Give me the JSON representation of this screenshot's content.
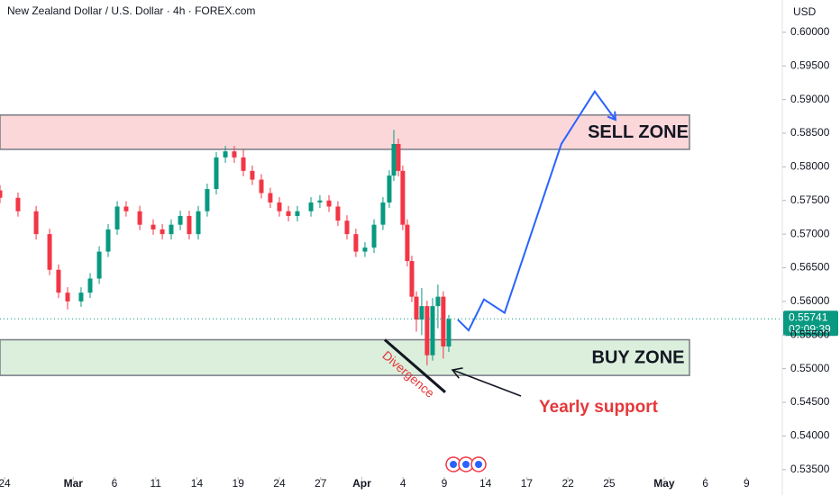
{
  "chart_data": {
    "type": "candlestick",
    "title": "New Zealand Dollar / U.S. Dollar · 4h · FOREX.com",
    "currency": "USD",
    "up_color": "#089981",
    "down_color": "#f23645",
    "x": [
      -0.33,
      0.98,
      2.3,
      3.28,
      3.93,
      4.59,
      5.57,
      6.23,
      6.89,
      7.54,
      8.2,
      8.85,
      9.84,
      10.82,
      11.48,
      12.13,
      12.79,
      13.44,
      14.1,
      14.75,
      15.41,
      16.07,
      16.72,
      17.38,
      18.03,
      18.69,
      19.34,
      20.0,
      20.66,
      21.31,
      22.3,
      22.95,
      23.61,
      24.26,
      24.92,
      25.57,
      26.23,
      26.89,
      27.54,
      28.0,
      28.33,
      28.66,
      28.98,
      29.31,
      29.64,
      29.97,
      30.36,
      30.75,
      31.15,
      31.54,
      31.93,
      32.33
    ],
    "open": [
      0.5765,
      0.5754,
      0.5734,
      0.57,
      0.5647,
      0.5613,
      0.56,
      0.5613,
      0.5634,
      0.5674,
      0.5707,
      0.5741,
      0.5734,
      0.5714,
      0.5707,
      0.57,
      0.5714,
      0.5727,
      0.57,
      0.5734,
      0.5767,
      0.5814,
      0.5823,
      0.5814,
      0.5794,
      0.5781,
      0.5761,
      0.5747,
      0.5734,
      0.5727,
      0.5734,
      0.5747,
      0.575,
      0.5741,
      0.572,
      0.57,
      0.5674,
      0.568,
      0.5714,
      0.5747,
      0.5787,
      0.5834,
      0.5794,
      0.5714,
      0.566,
      0.5607,
      0.5573,
      0.5593,
      0.552,
      0.5593,
      0.5607,
      0.5533
    ],
    "high": [
      0.5773,
      0.5762,
      0.5742,
      0.5708,
      0.5655,
      0.5621,
      0.5621,
      0.5642,
      0.5682,
      0.5715,
      0.5749,
      0.5749,
      0.5742,
      0.5722,
      0.5715,
      0.5722,
      0.5735,
      0.5735,
      0.5742,
      0.5775,
      0.5822,
      0.5831,
      0.5831,
      0.5826,
      0.5802,
      0.5789,
      0.5769,
      0.5755,
      0.5742,
      0.5742,
      0.5755,
      0.5758,
      0.5758,
      0.5749,
      0.5728,
      0.5708,
      0.5688,
      0.5722,
      0.5755,
      0.5795,
      0.5855,
      0.5842,
      0.5802,
      0.5722,
      0.5668,
      0.5615,
      0.562,
      0.5601,
      0.5605,
      0.5625,
      0.5615,
      0.558
    ],
    "low": [
      0.5746,
      0.5726,
      0.5692,
      0.5639,
      0.5605,
      0.5588,
      0.5592,
      0.5605,
      0.5626,
      0.5666,
      0.5699,
      0.5726,
      0.5706,
      0.5699,
      0.5692,
      0.5692,
      0.5706,
      0.5692,
      0.5692,
      0.5726,
      0.5759,
      0.5806,
      0.5806,
      0.5786,
      0.5773,
      0.5753,
      0.5739,
      0.5726,
      0.5719,
      0.5719,
      0.5726,
      0.5739,
      0.5733,
      0.5712,
      0.5692,
      0.5666,
      0.5666,
      0.5672,
      0.5706,
      0.5739,
      0.5779,
      0.5786,
      0.5706,
      0.5652,
      0.5599,
      0.5555,
      0.555,
      0.5505,
      0.5512,
      0.556,
      0.5515,
      0.5525
    ],
    "close": [
      0.5754,
      0.5734,
      0.57,
      0.5647,
      0.5613,
      0.56,
      0.5613,
      0.5634,
      0.5674,
      0.5707,
      0.5741,
      0.5734,
      0.5714,
      0.5707,
      0.57,
      0.5714,
      0.5727,
      0.57,
      0.5734,
      0.5767,
      0.5814,
      0.5823,
      0.5814,
      0.5794,
      0.5781,
      0.5761,
      0.5747,
      0.5734,
      0.5727,
      0.5734,
      0.5747,
      0.575,
      0.5741,
      0.572,
      0.57,
      0.5674,
      0.568,
      0.5714,
      0.5747,
      0.5787,
      0.5834,
      0.5794,
      0.5714,
      0.566,
      0.5607,
      0.5573,
      0.5593,
      0.552,
      0.5593,
      0.5607,
      0.5533,
      0.5574
    ],
    "last_price": 0.55741,
    "countdown": "02:09:39",
    "zones": [
      {
        "name": "SELL ZONE",
        "low": 0.5826,
        "high": 0.5877,
        "color": "#f23645"
      },
      {
        "name": "BUY ZONE",
        "low": 0.549,
        "high": 0.5543,
        "color": "#4caf50"
      }
    ],
    "projection": {
      "color": "#2962ff",
      "x": [
        32.98,
        33.77,
        34.89,
        36.39,
        40.52,
        42.95,
        44.46
      ],
      "values": [
        0.5573,
        0.5557,
        0.5603,
        0.5583,
        0.5834,
        0.5912,
        0.587
      ]
    },
    "divergence": {
      "label": "Divergence",
      "x": [
        27.67,
        32.07
      ],
      "values": [
        0.5543,
        0.5465
      ]
    },
    "annotation": "Yearly support",
    "xlim": [
      -0.33,
      56.6
    ],
    "xticks": [
      {
        "value": 0,
        "label": "24"
      },
      {
        "value": 5,
        "label": "Mar"
      },
      {
        "value": 8,
        "label": "6"
      },
      {
        "value": 11,
        "label": "11"
      },
      {
        "value": 14,
        "label": "14"
      },
      {
        "value": 17,
        "label": "19"
      },
      {
        "value": 20,
        "label": "24"
      },
      {
        "value": 23,
        "label": "27"
      },
      {
        "value": 26,
        "label": "Apr"
      },
      {
        "value": 29,
        "label": "4"
      },
      {
        "value": 32,
        "label": "9"
      },
      {
        "value": 35,
        "label": "14"
      },
      {
        "value": 38,
        "label": "17"
      },
      {
        "value": 41,
        "label": "22"
      },
      {
        "value": 44,
        "label": "25"
      },
      {
        "value": 48,
        "label": "May"
      },
      {
        "value": 51,
        "label": "6"
      },
      {
        "value": 54,
        "label": "9"
      }
    ],
    "ylim": [
      0.5339,
      0.6048
    ],
    "yticks": [
      {
        "value": 0.6,
        "label": "0.60000"
      },
      {
        "value": 0.595,
        "label": "0.59500"
      },
      {
        "value": 0.59,
        "label": "0.59000"
      },
      {
        "value": 0.585,
        "label": "0.58500"
      },
      {
        "value": 0.58,
        "label": "0.58000"
      },
      {
        "value": 0.575,
        "label": "0.57500"
      },
      {
        "value": 0.57,
        "label": "0.57000"
      },
      {
        "value": 0.565,
        "label": "0.56500"
      },
      {
        "value": 0.56,
        "label": "0.56000"
      },
      {
        "value": 0.555,
        "label": "0.55500"
      },
      {
        "value": 0.55,
        "label": "0.55000"
      },
      {
        "value": 0.545,
        "label": "0.54500"
      },
      {
        "value": 0.54,
        "label": "0.54000"
      },
      {
        "value": 0.535,
        "label": "0.53500"
      }
    ]
  }
}
